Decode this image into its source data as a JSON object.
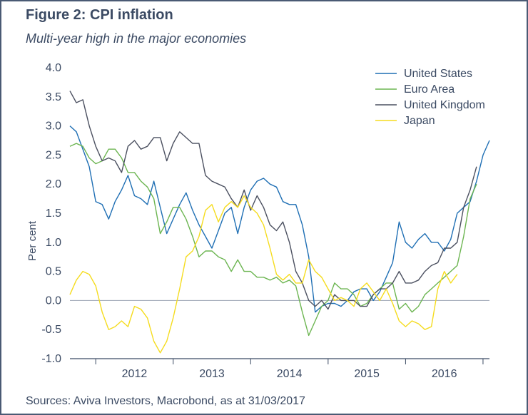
{
  "figure": {
    "title": "Figure 2: CPI inflation",
    "subtitle": "Multi-year high in the major economies",
    "sources": "Sources: Aviva Investors, Macrobond, as at 31/03/2017"
  },
  "chart_data": {
    "type": "line",
    "title": "Figure 2: CPI inflation",
    "subtitle": "Multi-year high in the major economies",
    "ylabel": "Per cent",
    "xlabel": "",
    "ylim": [
      -1.0,
      4.0
    ],
    "yticks": [
      "4.0",
      "3.5",
      "3.0",
      "2.5",
      "2.0",
      "1.5",
      "1.0",
      "0.5",
      "0.0",
      "-0.5",
      "-1.0"
    ],
    "ytick_values": [
      4.0,
      3.5,
      3.0,
      2.5,
      2.0,
      1.5,
      1.0,
      0.5,
      0.0,
      -0.5,
      -1.0
    ],
    "xticks": [
      "2012",
      "2013",
      "2014",
      "2015",
      "2016"
    ],
    "x_start": "2011-09",
    "x_end": "2017-02",
    "grid": "horizontal zero line only",
    "legend_position": "top-right",
    "series": [
      {
        "name": "United States",
        "color": "#1f6fb4",
        "values": [
          3.0,
          2.9,
          2.6,
          2.3,
          1.7,
          1.65,
          1.4,
          1.7,
          1.9,
          2.15,
          1.8,
          1.75,
          1.65,
          2.05,
          1.6,
          1.15,
          1.4,
          1.65,
          1.85,
          1.55,
          1.3,
          1.1,
          0.9,
          1.2,
          1.5,
          1.6,
          1.15,
          1.6,
          1.9,
          2.05,
          2.1,
          2.0,
          1.95,
          1.7,
          1.65,
          1.65,
          1.3,
          0.75,
          -0.2,
          -0.1,
          -0.05,
          -0.05,
          -0.1,
          0.0,
          0.15,
          0.2,
          0.2,
          0.0,
          0.15,
          0.4,
          0.65,
          1.35,
          1.0,
          0.9,
          1.05,
          1.15,
          1.0,
          1.0,
          0.85,
          1.05,
          1.5,
          1.6,
          1.7,
          2.05,
          2.5,
          2.75
        ]
      },
      {
        "name": "Euro Area",
        "color": "#6cb551",
        "values": [
          2.65,
          2.7,
          2.65,
          2.45,
          2.35,
          2.4,
          2.6,
          2.6,
          2.45,
          2.2,
          2.2,
          2.05,
          1.95,
          1.75,
          1.15,
          1.35,
          1.6,
          1.6,
          1.4,
          1.1,
          0.75,
          0.85,
          0.85,
          0.75,
          0.7,
          0.5,
          0.7,
          0.5,
          0.5,
          0.4,
          0.4,
          0.35,
          0.4,
          0.3,
          0.35,
          0.25,
          -0.2,
          -0.6,
          -0.35,
          -0.1,
          0.0,
          0.3,
          0.2,
          0.2,
          0.1,
          -0.1,
          -0.05,
          0.1,
          0.2,
          0.3,
          0.3,
          -0.15,
          -0.05,
          -0.2,
          -0.1,
          0.1,
          0.2,
          0.3,
          0.4,
          0.5,
          0.6,
          1.1,
          1.75,
          2.0
        ]
      },
      {
        "name": "United Kingdom",
        "color": "#4b5060",
        "values": [
          3.6,
          3.4,
          3.45,
          3.0,
          2.65,
          2.4,
          2.45,
          2.4,
          2.2,
          2.65,
          2.75,
          2.6,
          2.65,
          2.8,
          2.8,
          2.4,
          2.7,
          2.9,
          2.8,
          2.7,
          2.7,
          2.15,
          2.05,
          2.0,
          1.95,
          1.75,
          1.6,
          1.9,
          1.55,
          1.8,
          1.6,
          1.3,
          1.2,
          1.35,
          1.0,
          0.5,
          0.3,
          0.0,
          -0.1,
          0.0,
          -0.15,
          0.1,
          0.0,
          0.0,
          0.0,
          -0.1,
          -0.1,
          0.1,
          0.2,
          0.2,
          0.3,
          0.5,
          0.3,
          0.3,
          0.35,
          0.5,
          0.6,
          0.65,
          0.9,
          0.9,
          1.0,
          1.6,
          1.9,
          2.3
        ]
      },
      {
        "name": "Japan",
        "color": "#f5dc1e",
        "values": [
          0.1,
          0.35,
          0.5,
          0.45,
          0.25,
          -0.2,
          -0.5,
          -0.45,
          -0.35,
          -0.45,
          -0.1,
          -0.15,
          -0.3,
          -0.7,
          -0.9,
          -0.7,
          -0.3,
          0.2,
          0.75,
          0.85,
          1.1,
          1.55,
          1.65,
          1.35,
          1.6,
          1.7,
          1.6,
          1.8,
          1.6,
          1.5,
          1.3,
          0.9,
          0.45,
          0.35,
          0.45,
          0.3,
          0.3,
          0.7,
          0.5,
          0.4,
          0.2,
          0.0,
          0.05,
          0.0,
          -0.1,
          0.2,
          0.3,
          0.15,
          0.0,
          0.2,
          -0.05,
          -0.35,
          -0.45,
          -0.35,
          -0.4,
          -0.5,
          -0.45,
          0.2,
          0.5,
          0.3,
          0.45
        ]
      }
    ]
  }
}
